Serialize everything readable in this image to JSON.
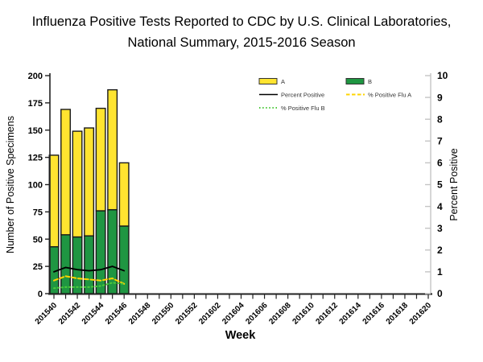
{
  "title": {
    "line1": "Influenza Positive Tests Reported to CDC by U.S. Clinical Laboratories,",
    "line2": "National Summary, 2015-2016 Season"
  },
  "chart_data": {
    "type": "bar",
    "subtype": "stacked-bars-with-percent-lines",
    "title": "Influenza Positive Tests Reported to CDC by U.S. Clinical Laboratories, National Summary, 2015-2016 Season",
    "xlabel": "Week",
    "ylabel_left": "Number of Positive Specimens",
    "ylabel_right": "Percent Positive",
    "ylim_left": [
      0,
      200
    ],
    "ylim_right": [
      0,
      10
    ],
    "y_ticks_left": [
      0,
      25,
      50,
      75,
      100,
      125,
      150,
      175,
      200
    ],
    "y_ticks_right": [
      0,
      1,
      2,
      3,
      4,
      5,
      6,
      7,
      8,
      9,
      10
    ],
    "x_categories": [
      "201540",
      "201541",
      "201542",
      "201543",
      "201544",
      "201545",
      "201546",
      "201547",
      "201548",
      "201549",
      "201550",
      "201551",
      "201552",
      "201601",
      "201602",
      "201603",
      "201604",
      "201605",
      "201606",
      "201607",
      "201608",
      "201609",
      "201610",
      "201611",
      "201612",
      "201613",
      "201614",
      "201615",
      "201616",
      "201617",
      "201618",
      "201619",
      "201620"
    ],
    "x_labeled_every": 2,
    "bar_weeks": [
      "201540",
      "201541",
      "201542",
      "201543",
      "201544",
      "201545",
      "201546"
    ],
    "bar_totals": [
      127,
      169,
      149,
      152,
      170,
      187,
      120
    ],
    "series": [
      {
        "name": "A",
        "kind": "bar",
        "color": "#FFE430",
        "values": [
          84,
          115,
          97,
          99,
          94,
          110,
          58
        ]
      },
      {
        "name": "B",
        "kind": "bar",
        "color": "#1F9642",
        "values": [
          43,
          54,
          52,
          53,
          76,
          77,
          62
        ]
      },
      {
        "name": "Percent Positive",
        "kind": "line",
        "style": "solid",
        "color": "#000000",
        "axis": "right",
        "values": [
          1.0,
          1.2,
          1.1,
          1.05,
          1.1,
          1.25,
          1.05
        ]
      },
      {
        "name": "% Positive Flu A",
        "kind": "line",
        "style": "dashed",
        "color": "#FFD400",
        "axis": "right",
        "values": [
          0.6,
          0.8,
          0.7,
          0.65,
          0.6,
          0.7,
          0.45
        ]
      },
      {
        "name": "% Positive Flu B",
        "kind": "line",
        "style": "dotted",
        "color": "#4CC93B",
        "axis": "right",
        "values": [
          0.25,
          0.3,
          0.3,
          0.3,
          0.35,
          0.5,
          0.45
        ]
      }
    ],
    "legend": {
      "position": "top-right-inside",
      "items": [
        {
          "label": "A",
          "swatch": "box",
          "color": "#FFE430"
        },
        {
          "label": "B",
          "swatch": "box",
          "color": "#1F9642"
        },
        {
          "label": "Percent Positive",
          "swatch": "line-solid",
          "color": "#000000"
        },
        {
          "label": "% Positive Flu A",
          "swatch": "line-dashed",
          "color": "#FFD400"
        },
        {
          "label": "% Positive Flu B",
          "swatch": "line-dotted",
          "color": "#4CC93B"
        }
      ]
    },
    "grid": false,
    "colors": {
      "left_axis": "#222222",
      "right_axis": "#C4C4C4",
      "bar_border": "#1A1A1A",
      "background": "#FFFFFF"
    }
  }
}
